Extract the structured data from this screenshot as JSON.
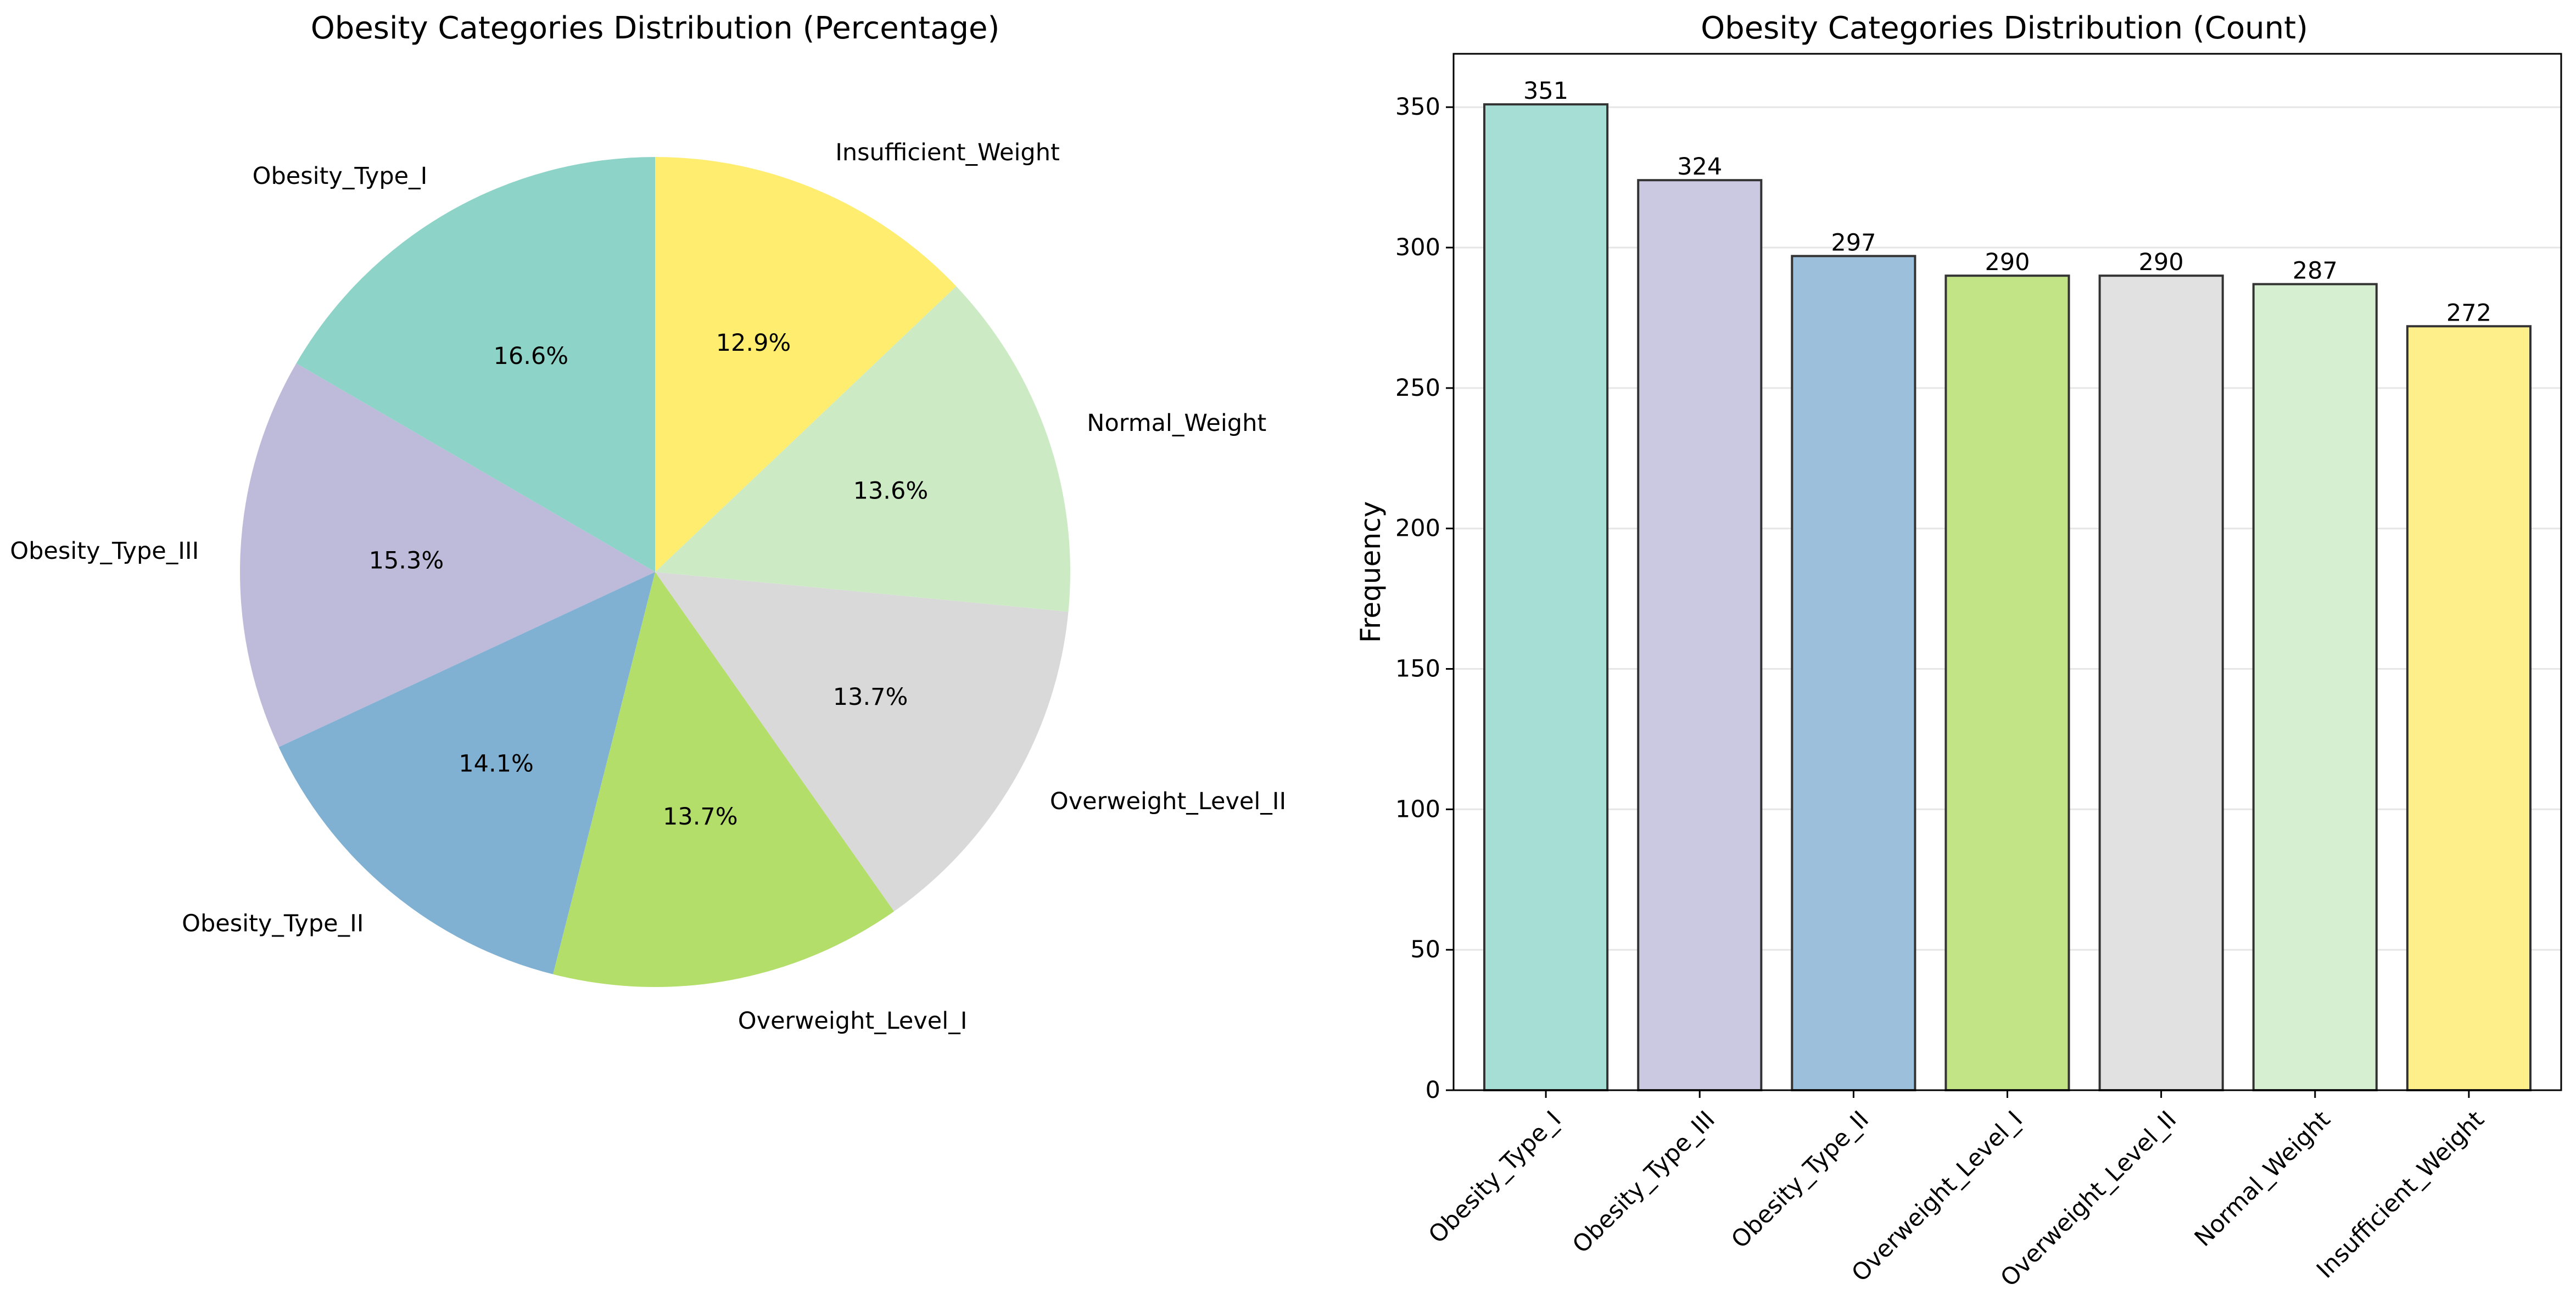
{
  "chart_data": [
    {
      "type": "pie",
      "title": "Obesity Categories Distribution (Percentage)",
      "categories": [
        "Obesity_Type_I",
        "Obesity_Type_III",
        "Obesity_Type_II",
        "Overweight_Level_I",
        "Overweight_Level_II",
        "Normal_Weight",
        "Insufficient_Weight"
      ],
      "values": [
        16.6,
        15.3,
        14.1,
        13.7,
        13.7,
        13.6,
        12.9
      ],
      "value_labels": [
        "16.6%",
        "15.3%",
        "14.1%",
        "13.7%",
        "13.7%",
        "13.6%",
        "12.9%"
      ],
      "counts": [
        351,
        324,
        297,
        290,
        290,
        287,
        272
      ],
      "colors": [
        "#8dd3c7",
        "#bebada",
        "#80b1d3",
        "#b3de69",
        "#d9d9d9",
        "#ccebc5",
        "#ffed6f"
      ],
      "start_angle": 90,
      "direction": "counterclockwise"
    },
    {
      "type": "bar",
      "title": "Obesity Categories Distribution (Count)",
      "categories": [
        "Obesity_Type_I",
        "Obesity_Type_III",
        "Obesity_Type_II",
        "Overweight_Level_I",
        "Overweight_Level_II",
        "Normal_Weight",
        "Insufficient_Weight"
      ],
      "values": [
        351,
        324,
        297,
        290,
        290,
        287,
        272
      ],
      "xlabel": "",
      "ylabel": "Frequency",
      "ylim": [
        0,
        369
      ],
      "yticks": [
        0,
        50,
        100,
        150,
        200,
        250,
        300,
        350
      ],
      "grid": "horizontal",
      "colors": [
        "#a6ddd4",
        "#cbc8e2",
        "#9cc0dc",
        "#c2e487",
        "#e1e1e1",
        "#d6efd1",
        "#ffef8a"
      ],
      "edge_color": "#333333"
    }
  ]
}
